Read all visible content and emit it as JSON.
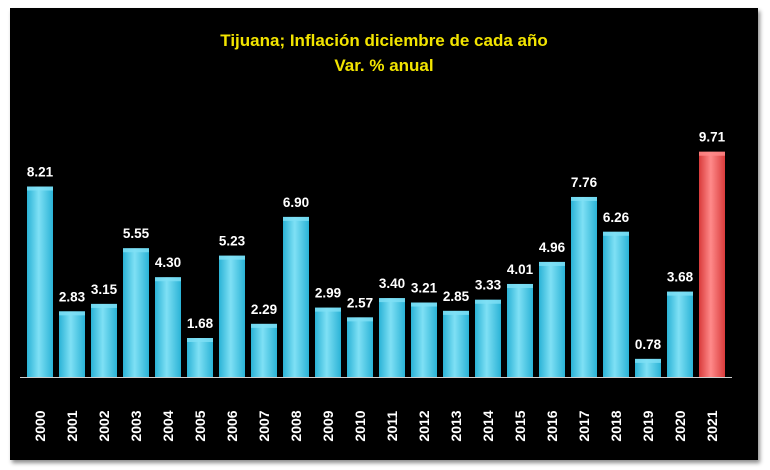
{
  "chart_data": {
    "type": "bar",
    "title": "Tijuana; Inflación diciembre de cada año",
    "subtitle": "Var. % anual",
    "categories": [
      "2000",
      "2001",
      "2002",
      "2003",
      "2004",
      "2005",
      "2006",
      "2007",
      "2008",
      "2009",
      "2010",
      "2011",
      "2012",
      "2013",
      "2014",
      "2015",
      "2016",
      "2017",
      "2018",
      "2019",
      "2020",
      "2021"
    ],
    "values": [
      8.21,
      2.83,
      3.15,
      5.55,
      4.3,
      1.68,
      5.23,
      2.29,
      6.9,
      2.99,
      2.57,
      3.4,
      3.21,
      2.85,
      3.33,
      4.01,
      4.96,
      7.76,
      6.26,
      0.78,
      3.68,
      9.71
    ],
    "value_labels": [
      "8.21",
      "2.83",
      "3.15",
      "5.55",
      "4.30",
      "1.68",
      "5.23",
      "2.29",
      "6.90",
      "2.99",
      "2.57",
      "3.40",
      "3.21",
      "2.85",
      "3.33",
      "4.01",
      "4.96",
      "7.76",
      "6.26",
      "0.78",
      "3.68",
      "9.71"
    ],
    "highlight_index": 21,
    "ylim": [
      0,
      10
    ],
    "xlabel": "",
    "ylabel": "",
    "grid": false,
    "legend": "none",
    "colors": {
      "background": "#000000",
      "title": "#f2e400",
      "bar": "#2ab3d6",
      "bar_light": "#7fe0f5",
      "highlight": "#d93b3b",
      "highlight_light": "#ff8a8a",
      "text": "#ffffff"
    }
  }
}
